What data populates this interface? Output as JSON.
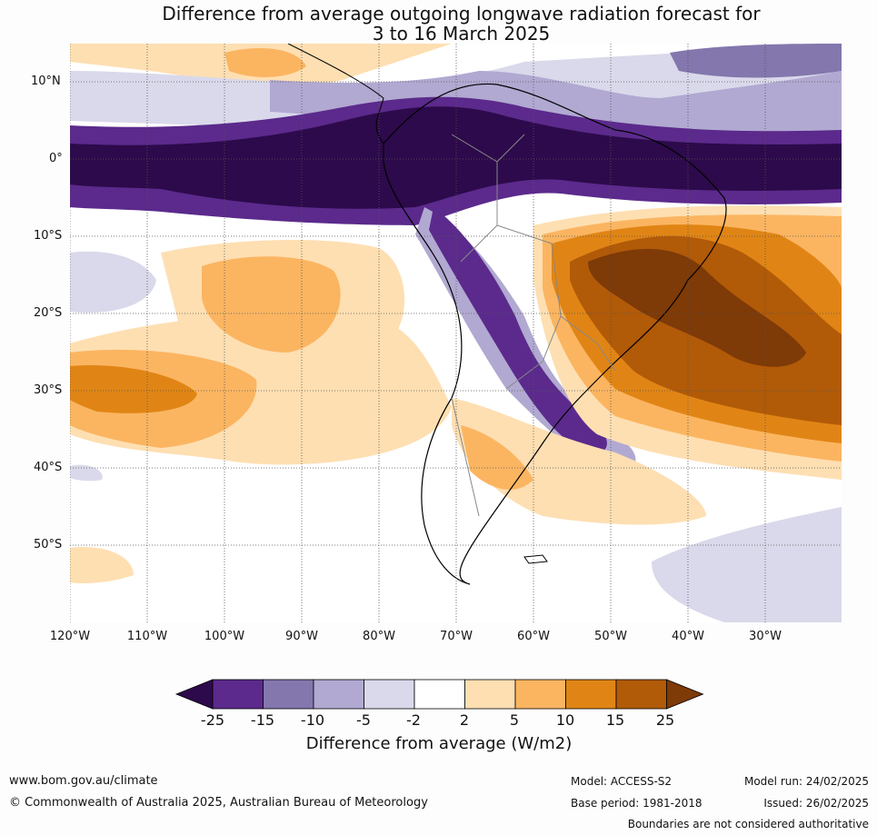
{
  "title": {
    "line1": "Difference from average outgoing longwave radiation forecast for",
    "line2": "3 to 16 March 2025"
  },
  "map": {
    "lat_labels": [
      "10°N",
      "0°",
      "10°S",
      "20°S",
      "30°S",
      "40°S",
      "50°S"
    ],
    "lon_labels": [
      "120°W",
      "110°W",
      "100°W",
      "90°W",
      "80°W",
      "70°W",
      "60°W",
      "50°W",
      "40°W",
      "30°W"
    ],
    "gridlines": "dotted",
    "projection_extent": {
      "lon": [
        -120,
        -20
      ],
      "lat": [
        -60,
        15
      ]
    }
  },
  "colorbar": {
    "ticks": [
      "-25",
      "-15",
      "-10",
      "-5",
      "-2",
      "2",
      "5",
      "10",
      "15",
      "25"
    ],
    "colors": [
      "#2d0a4b",
      "#5b2a8c",
      "#8377ad",
      "#b1a9d1",
      "#d9d9eb",
      "#ffffff",
      "#fedfb2",
      "#fbb561",
      "#e08515",
      "#b15a08",
      "#7e3a07"
    ],
    "label": "Difference from average (W/m2)",
    "extend": "both"
  },
  "footer": {
    "website": "www.bom.gov.au/climate",
    "copyright": "© Commonwealth of Australia 2025, Australian Bureau of Meteorology",
    "model": "Model: ACCESS-S2",
    "base_period": "Base period: 1981-2018",
    "model_run": "Model run: 24/02/2025",
    "issued": "Issued: 26/02/2025",
    "disclaimer": "Boundaries are not considered authoritative"
  }
}
